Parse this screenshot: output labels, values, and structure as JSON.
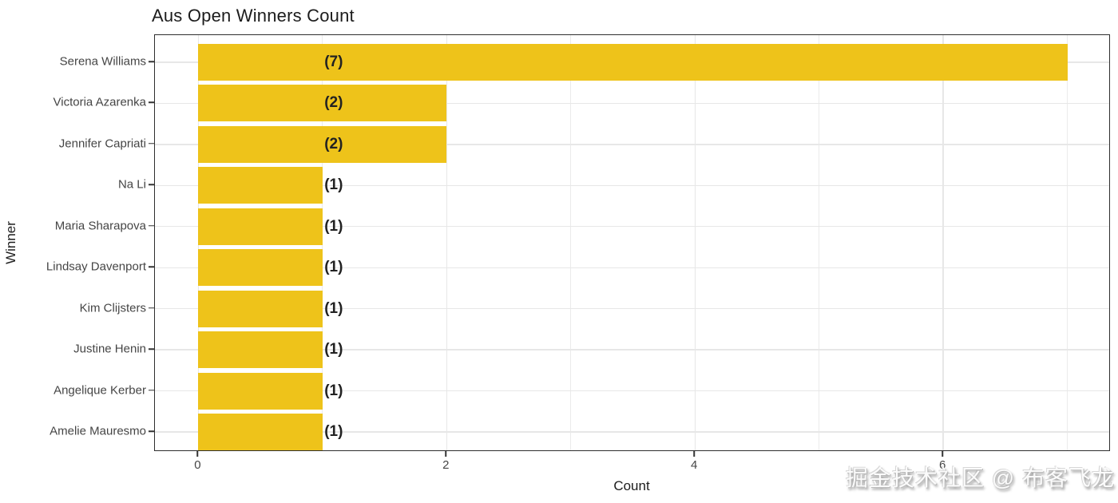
{
  "chart_data": {
    "type": "bar",
    "orientation": "horizontal",
    "title": "Aus Open Winners Count",
    "xlabel": "Count",
    "ylabel": "Winner",
    "categories": [
      "Serena Williams",
      "Victoria Azarenka",
      "Jennifer Capriati",
      "Na Li",
      "Maria Sharapova",
      "Lindsay Davenport",
      "Kim Clijsters",
      "Justine Henin",
      "Angelique Kerber",
      "Amelie Mauresmo"
    ],
    "values": [
      7,
      2,
      2,
      1,
      1,
      1,
      1,
      1,
      1,
      1
    ],
    "bar_labels": [
      "(7)",
      "(2)",
      "(2)",
      "(1)",
      "(1)",
      "(1)",
      "(1)",
      "(1)",
      "(1)",
      "(1)"
    ],
    "xticks": [
      0,
      2,
      4,
      6
    ],
    "minor_xticks": [
      1,
      3,
      5,
      7
    ],
    "xlim": [
      -0.35,
      7.35
    ],
    "bar_color": "#EEC31A",
    "grid": true,
    "legend": false
  },
  "watermark": {
    "text": "掘金技术社区 @ 布客飞龙"
  }
}
